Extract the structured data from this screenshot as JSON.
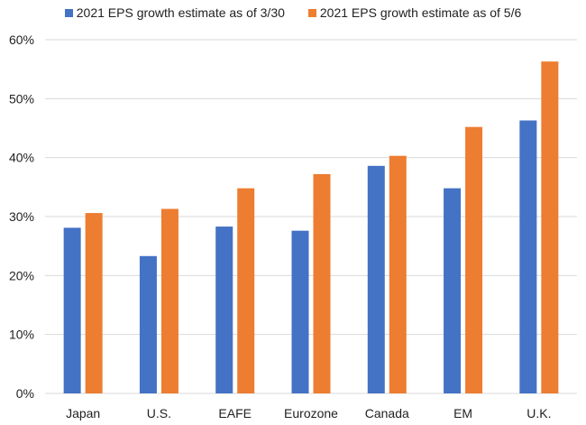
{
  "chart_data": {
    "type": "bar",
    "title": "",
    "xlabel": "",
    "ylabel": "",
    "categories": [
      "Japan",
      "U.S.",
      "EAFE",
      "Eurozone",
      "Canada",
      "EM",
      "U.K."
    ],
    "series": [
      {
        "name": "2021 EPS growth estimate as of 3/30",
        "color": "#4472C4",
        "values": [
          28.1,
          23.3,
          28.3,
          27.6,
          38.6,
          34.8,
          46.3
        ]
      },
      {
        "name": "2021 EPS growth estimate as of 5/6",
        "color": "#ED7D31",
        "values": [
          30.6,
          31.3,
          34.8,
          37.2,
          40.3,
          45.2,
          56.3
        ]
      }
    ],
    "ylim": [
      0,
      60
    ],
    "yticks": [
      0,
      10,
      20,
      30,
      40,
      50,
      60
    ],
    "ytick_labels": [
      "0%",
      "10%",
      "20%",
      "30%",
      "40%",
      "50%",
      "60%"
    ],
    "grid": true,
    "legend_position": "top-center"
  }
}
